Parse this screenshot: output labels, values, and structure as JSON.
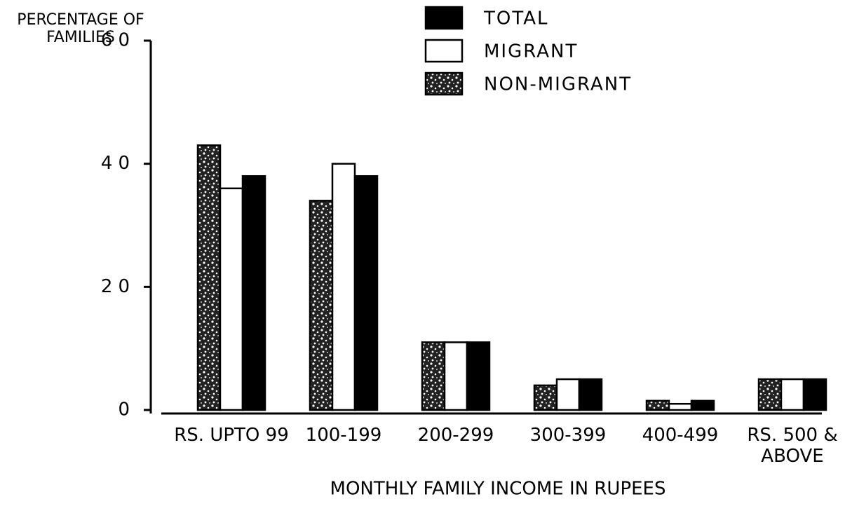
{
  "chart_data": {
    "type": "bar",
    "y_label": "PERCENTAGE OF FAMILIES",
    "x_label": "MONTHLY FAMILY INCOME IN RUPEES",
    "categories": [
      "RS. UPTO 99",
      "100-199",
      "200-299",
      "300-399",
      "400-499",
      "RS. 500 & ABOVE"
    ],
    "series": [
      {
        "name": "NON-MIGRANT",
        "color": "#666666",
        "values": [
          43,
          34,
          11,
          4,
          1.5,
          5
        ]
      },
      {
        "name": "MIGRANT",
        "color": "#ffffff",
        "values": [
          36,
          40,
          11,
          5,
          1,
          5
        ]
      },
      {
        "name": "TOTAL",
        "color": "#000000",
        "values": [
          38,
          38,
          11,
          5,
          1.5,
          5
        ]
      }
    ],
    "ylim": [
      0,
      60
    ],
    "yticks": [
      0,
      20,
      40,
      60
    ]
  }
}
